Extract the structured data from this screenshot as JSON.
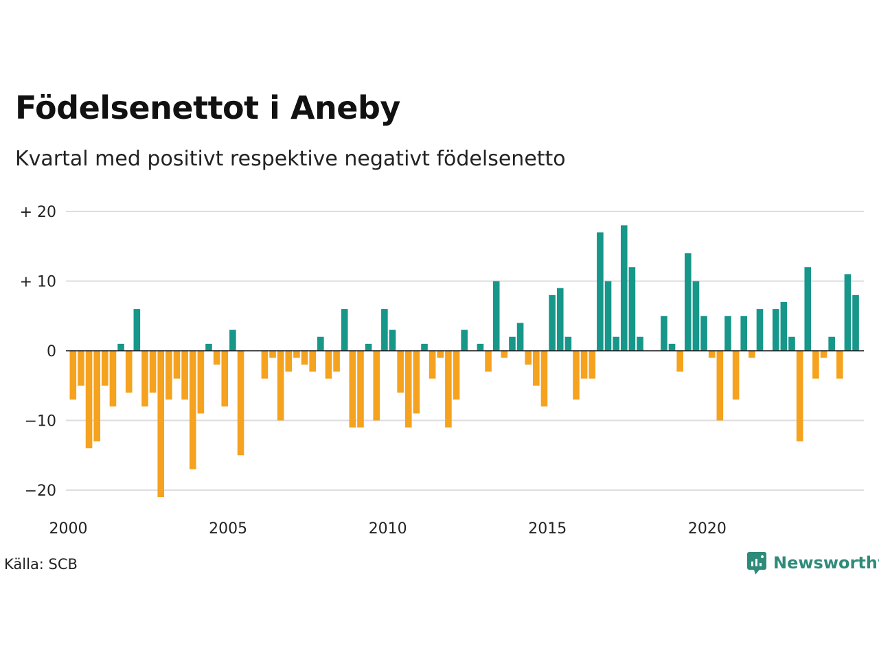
{
  "title": "Födelsenettot i Aneby",
  "subtitle": "Kvartal med positivt respektive negativt födelsenetto",
  "source": "Källa: SCB",
  "brand": "Newsworthy",
  "colors": {
    "positive": "#17968a",
    "negative": "#f5a21f",
    "grid": "#dddddd",
    "zero": "#111111",
    "brand": "#2e8b7a"
  },
  "chart_data": {
    "type": "bar",
    "title": "Födelsenettot i Aneby",
    "subtitle": "Kvartal med positivt respektive negativt födelsenetto",
    "xlabel": "",
    "ylabel": "",
    "start": "2000 Q1",
    "x_ticks": [
      "2000",
      "2005",
      "2010",
      "2015",
      "2020"
    ],
    "y_ticks": [
      {
        "value": 20,
        "label": "+ 20"
      },
      {
        "value": 10,
        "label": "+ 10"
      },
      {
        "value": 0,
        "label": "0"
      },
      {
        "value": -10,
        "label": "−10"
      },
      {
        "value": -20,
        "label": "−20"
      }
    ],
    "ylim": [
      -21,
      20
    ],
    "grid": true,
    "legend": "none",
    "values": [
      -7,
      -5,
      -14,
      -13,
      -5,
      -8,
      1,
      -6,
      6,
      -8,
      -6,
      -21,
      -7,
      -4,
      -7,
      -17,
      -9,
      1,
      -2,
      -8,
      3,
      -15,
      0,
      0,
      -4,
      -1,
      -10,
      -3,
      -1,
      -2,
      -3,
      2,
      -4,
      -3,
      6,
      -11,
      -11,
      1,
      -10,
      6,
      3,
      -6,
      -11,
      -9,
      1,
      -4,
      -1,
      -11,
      -7,
      3,
      0,
      1,
      -3,
      10,
      -1,
      2,
      4,
      -2,
      -5,
      -8,
      8,
      9,
      2,
      -7,
      -4,
      -4,
      17,
      10,
      2,
      18,
      12,
      2,
      0,
      0,
      5,
      1,
      -3,
      14,
      10,
      5,
      -1,
      -10,
      5,
      -7,
      5,
      -1,
      6,
      0,
      6,
      7,
      2,
      -13,
      12,
      -4,
      -1,
      2,
      -4,
      11,
      8
    ]
  }
}
